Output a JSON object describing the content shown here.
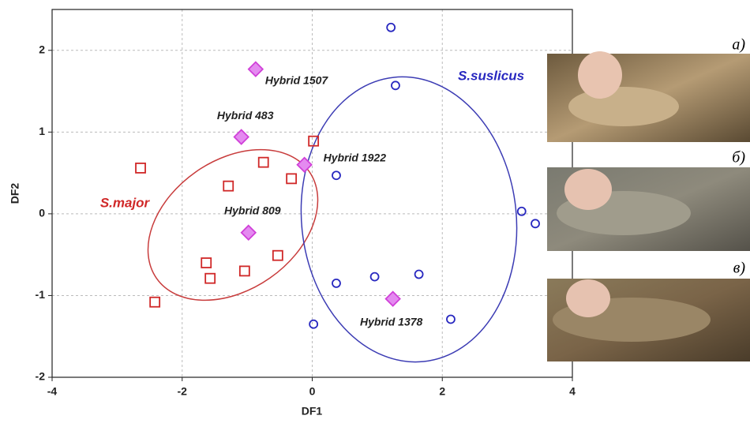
{
  "chart_data": {
    "type": "scatter",
    "xlabel": "DF1",
    "ylabel": "DF2",
    "xlim": [
      -4,
      4
    ],
    "ylim": [
      -2,
      2.5
    ],
    "xticks": [
      -4,
      -2,
      0,
      2,
      4
    ],
    "yticks": [
      -2,
      -1,
      0,
      1,
      2
    ],
    "grid": true,
    "series": [
      {
        "name": "S.major",
        "color": "#d02828",
        "marker": "square",
        "x": [
          -2.64,
          0.02,
          -0.75,
          -1.29,
          -0.32,
          -0.53,
          -1.63,
          -1.57,
          -1.04,
          -2.42
        ],
        "values": [
          0.56,
          0.89,
          0.63,
          0.34,
          0.43,
          -0.51,
          -0.6,
          -0.79,
          -0.7,
          -1.08
        ]
      },
      {
        "name": "S.suslicus",
        "color": "#2828c0",
        "marker": "circle",
        "x": [
          1.21,
          1.28,
          0.37,
          3.22,
          3.43,
          0.37,
          0.96,
          1.64,
          2.13,
          0.02
        ],
        "values": [
          2.28,
          1.57,
          0.47,
          0.03,
          -0.12,
          -0.85,
          -0.77,
          -0.74,
          -1.29,
          -1.35
        ]
      },
      {
        "color": "#d040d8",
        "marker": "diamond",
        "x": [
          -0.87,
          -1.09,
          -0.12,
          -0.98,
          1.24
        ],
        "values": [
          1.77,
          0.94,
          0.6,
          -0.23,
          -1.04
        ],
        "labels": [
          "Hybrid 1507",
          "Hybrid 483",
          "Hybrid 1922",
          "Hybrid 809",
          "Hybrid 1378"
        ]
      }
    ],
    "panels": [
      "а)",
      "б)",
      "в)"
    ]
  }
}
